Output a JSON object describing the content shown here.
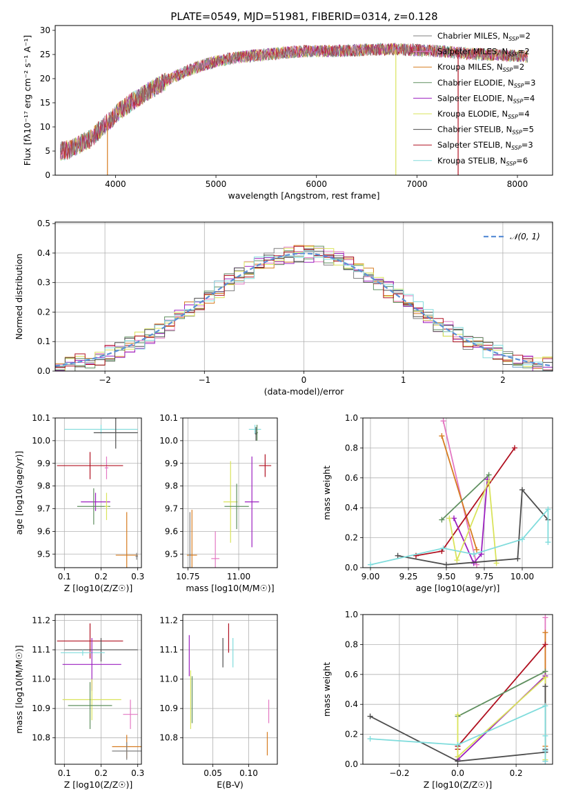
{
  "figure_title": "PLATE=0549, MJD=51981, FIBERID=0314, z=0.128",
  "colors": {
    "CM": "#7f7f7f",
    "SM": "#e377c2",
    "KM": "#d67b1f",
    "CE": "#5f8f5f",
    "SE": "#9b1fbf",
    "KE": "#d9e35a",
    "CS": "#4d4d4d",
    "SS": "#b01020",
    "KS": "#80dcdc",
    "gauss": "#5b8fd6"
  },
  "chart_data": [
    {
      "id": "spectrum",
      "type": "line",
      "xlabel": "wavelength [Angstrom, rest frame]",
      "ylabel": "Flux [fλ10⁻¹⁷ erg cm⁻² s⁻¹ A⁻¹]",
      "xlim": [
        3400,
        8350
      ],
      "ylim": [
        0,
        31
      ],
      "xticks": [
        4000,
        5000,
        6000,
        7000,
        8000
      ],
      "yticks": [
        0,
        5,
        10,
        15,
        20,
        25,
        30
      ],
      "continuum": {
        "x": [
          3450,
          3550,
          3650,
          3750,
          3850,
          3950,
          4050,
          4150,
          4300,
          4500,
          4700,
          4900,
          5100,
          5300,
          5500,
          5700,
          5900,
          6100,
          6300,
          6500,
          6700,
          6900,
          7100,
          7300,
          7500,
          7700,
          7900,
          8100
        ],
        "y": [
          5.0,
          5.3,
          6.5,
          7.5,
          9.5,
          11.5,
          13.5,
          15.0,
          17.0,
          19.5,
          21.5,
          23.0,
          24.0,
          24.6,
          25.0,
          25.4,
          25.7,
          25.7,
          25.8,
          26.0,
          26.1,
          26.0,
          25.8,
          25.6,
          25.2,
          25.0,
          24.8,
          24.6
        ]
      },
      "dropouts": [
        {
          "x": 3920,
          "color": "KM"
        },
        {
          "x": 6790,
          "color": "KE"
        },
        {
          "x": 7410,
          "color": "SS"
        }
      ],
      "legend": [
        {
          "key": "CM",
          "label": "Chabrier MILES, N_SSP=2"
        },
        {
          "key": "SM",
          "label": "Salpeter MILES, N_SSP=2"
        },
        {
          "key": "KM",
          "label": "Kroupa MILES, N_SSP=2"
        },
        {
          "key": "CE",
          "label": "Chabrier ELODIE, N_SSP=3"
        },
        {
          "key": "SE",
          "label": "Salpeter ELODIE, N_SSP=4"
        },
        {
          "key": "KE",
          "label": "Kroupa ELODIE, N_SSP=4"
        },
        {
          "key": "CS",
          "label": "Chabrier STELIB, N_SSP=5"
        },
        {
          "key": "SS",
          "label": "Salpeter STELIB, N_SSP=3"
        },
        {
          "key": "KS",
          "label": "Kroupa STELIB, N_SSP=6"
        }
      ]
    },
    {
      "id": "residuals",
      "type": "line",
      "xlabel": "(data-model)/error",
      "ylabel": "Normed distribution",
      "xlim": [
        -2.5,
        2.5
      ],
      "ylim": [
        0,
        0.505
      ],
      "xticks": [
        -2,
        -1,
        0,
        1,
        2
      ],
      "yticks": [
        0.0,
        0.1,
        0.2,
        0.3,
        0.4,
        0.5
      ],
      "legend": "N(0,1)",
      "bin_width": 0.1
    },
    {
      "id": "z_age",
      "type": "scatter",
      "xlabel": "Z [log10(Z/Z☉)]",
      "ylabel": "age [log10(age/yr)]",
      "xlim": [
        0.075,
        0.31
      ],
      "ylim": [
        9.44,
        10.1
      ],
      "xticks": [
        0.1,
        0.2,
        0.3
      ],
      "yticks": [
        9.5,
        9.6,
        9.7,
        9.8,
        9.9,
        10.0,
        10.1
      ],
      "points": [
        {
          "key": "KS",
          "x": 0.2,
          "y": 10.05,
          "xerr": 0.1,
          "yerr": 0.02
        },
        {
          "key": "CS",
          "x": 0.24,
          "y": 10.035,
          "xerr": 0.06,
          "yerr": 0.07
        },
        {
          "key": "SM",
          "x": 0.215,
          "y": 9.88,
          "xerr": 0.005,
          "yerr": 0.05
        },
        {
          "key": "SS",
          "x": 0.17,
          "y": 9.89,
          "xerr": 0.09,
          "yerr": 0.06
        },
        {
          "key": "SE",
          "x": 0.185,
          "y": 9.73,
          "xerr": 0.04,
          "yerr": 0.04
        },
        {
          "key": "CE",
          "x": 0.18,
          "y": 9.71,
          "xerr": 0.045,
          "yerr": 0.08
        },
        {
          "key": "KE",
          "x": 0.215,
          "y": 9.71,
          "xerr": 0.005,
          "yerr": 0.06
        },
        {
          "key": "KM",
          "x": 0.27,
          "y": 9.495,
          "xerr": 0.03,
          "yerr": 0.19
        },
        {
          "key": "CM",
          "x": 0.297,
          "y": 9.49,
          "xerr": 0.003,
          "yerr": 0.015
        }
      ]
    },
    {
      "id": "mass_age",
      "type": "scatter",
      "xlabel": "mass [log10(M/M☉)]",
      "ylabel": "",
      "xlim": [
        10.725,
        11.19
      ],
      "ylim": [
        9.44,
        10.1
      ],
      "xticks": [
        10.75,
        11.0
      ],
      "yticks": [
        9.5,
        9.6,
        9.7,
        9.8,
        9.9,
        10.0,
        10.1
      ],
      "points": [
        {
          "key": "KS",
          "x": 11.08,
          "y": 10.05,
          "xerr": 0.03,
          "yerr": 0.02
        },
        {
          "key": "CE",
          "x": 11.09,
          "y": 10.035,
          "xerr": 0.005,
          "yerr": 0.035
        },
        {
          "key": "CS",
          "x": 11.085,
          "y": 10.03,
          "xerr": 0.005,
          "yerr": 0.03
        },
        {
          "key": "SS",
          "x": 11.13,
          "y": 9.89,
          "xerr": 0.03,
          "yerr": 0.05
        },
        {
          "key": "SE",
          "x": 11.065,
          "y": 9.73,
          "xerr": 0.035,
          "yerr": 0.2
        },
        {
          "key": "KE",
          "x": 10.96,
          "y": 9.73,
          "xerr": 0.035,
          "yerr": 0.18
        },
        {
          "key": "CE",
          "x": 10.99,
          "y": 9.71,
          "xerr": 0.06,
          "yerr": 0.1
        },
        {
          "key": "KM",
          "x": 10.77,
          "y": 9.495,
          "xerr": 0.025,
          "yerr": 0.2
        },
        {
          "key": "CM",
          "x": 10.76,
          "y": 9.495,
          "xerr": 0.005,
          "yerr": 0.19
        },
        {
          "key": "SM",
          "x": 10.885,
          "y": 9.48,
          "xerr": 0.02,
          "yerr": 0.12
        }
      ]
    },
    {
      "id": "age_weight",
      "type": "line",
      "xlabel": "age  [log10(age/yr)]",
      "ylabel": "mass weight",
      "xlim": [
        8.95,
        10.2
      ],
      "ylim": [
        0,
        1.0
      ],
      "xticks": [
        9.0,
        9.25,
        9.5,
        9.75,
        10.0
      ],
      "yticks": [
        0.0,
        0.2,
        0.4,
        0.6,
        0.8,
        1.0
      ],
      "series": [
        {
          "key": "SM",
          "x": [
            9.48,
            9.7
          ],
          "y": [
            0.98,
            0.02
          ]
        },
        {
          "key": "KM",
          "x": [
            9.47,
            9.7
          ],
          "y": [
            0.88,
            0.12
          ]
        },
        {
          "key": "SS",
          "x": [
            9.3,
            9.47,
            9.95
          ],
          "y": [
            0.08,
            0.11,
            0.8
          ]
        },
        {
          "key": "CE",
          "x": [
            9.47,
            9.78
          ],
          "y": [
            0.32,
            0.62
          ]
        },
        {
          "key": "SE",
          "x": [
            9.55,
            9.68,
            9.73,
            9.77
          ],
          "y": [
            0.33,
            0.03,
            0.09,
            0.59
          ]
        },
        {
          "key": "KE",
          "x": [
            9.52,
            9.57,
            9.78,
            9.83
          ],
          "y": [
            0.33,
            0.05,
            0.58,
            0.03
          ]
        },
        {
          "key": "CS",
          "x": [
            9.18,
            9.5,
            9.97,
            10.0,
            10.17
          ],
          "y": [
            0.08,
            0.02,
            0.06,
            0.52,
            0.32
          ]
        },
        {
          "key": "KS",
          "x": [
            9.0,
            9.48,
            9.68,
            10.0,
            10.17,
            10.17
          ],
          "y": [
            0.02,
            0.13,
            0.09,
            0.19,
            0.39,
            0.17
          ]
        }
      ]
    },
    {
      "id": "z_mass",
      "type": "scatter",
      "xlabel": "Z [log10(Z/Z☉)]",
      "ylabel": "mass [log10(M/M☉)]",
      "xlim": [
        0.075,
        0.31
      ],
      "ylim": [
        10.71,
        11.22
      ],
      "xticks": [
        0.1,
        0.2,
        0.3
      ],
      "yticks": [
        10.8,
        10.9,
        11.0,
        11.1,
        11.2
      ],
      "points": [
        {
          "key": "SS",
          "x": 0.17,
          "y": 11.13,
          "xerr": 0.09,
          "yerr": 0.06
        },
        {
          "key": "CS",
          "x": 0.2,
          "y": 11.1,
          "xerr": 0.1,
          "yerr": 0.04
        },
        {
          "key": "KS",
          "x": 0.15,
          "y": 11.09,
          "xerr": 0.06,
          "yerr": 0.01
        },
        {
          "key": "SE",
          "x": 0.175,
          "y": 11.05,
          "xerr": 0.08,
          "yerr": 0.09
        },
        {
          "key": "KE",
          "x": 0.175,
          "y": 10.93,
          "xerr": 0.08,
          "yerr": 0.07
        },
        {
          "key": "CE",
          "x": 0.17,
          "y": 10.91,
          "xerr": 0.06,
          "yerr": 0.08
        },
        {
          "key": "SM",
          "x": 0.28,
          "y": 10.88,
          "xerr": 0.02,
          "yerr": 0.05
        },
        {
          "key": "KM",
          "x": 0.27,
          "y": 10.77,
          "xerr": 0.04,
          "yerr": 0.04
        },
        {
          "key": "CM",
          "x": 0.27,
          "y": 10.755,
          "xerr": 0.04,
          "yerr": 0.03
        }
      ]
    },
    {
      "id": "ebv_mass",
      "type": "scatter",
      "xlabel": "E(B-V)",
      "ylabel": "",
      "xlim": [
        0.008,
        0.14
      ],
      "ylim": [
        10.71,
        11.22
      ],
      "xticks": [
        0.05,
        0.1
      ],
      "yticks": [
        10.8,
        10.9,
        11.0,
        11.1,
        11.2
      ],
      "points": [
        {
          "key": "SS",
          "x": 0.072,
          "y": 11.14,
          "xerr": 0,
          "yerr": 0.05
        },
        {
          "key": "CS",
          "x": 0.064,
          "y": 11.09,
          "xerr": 0,
          "yerr": 0.05
        },
        {
          "key": "KS",
          "x": 0.078,
          "y": 11.09,
          "xerr": 0,
          "yerr": 0.05
        },
        {
          "key": "SE",
          "x": 0.017,
          "y": 11.08,
          "xerr": 0,
          "yerr": 0.07
        },
        {
          "key": "KE",
          "x": 0.019,
          "y": 10.93,
          "xerr": 0,
          "yerr": 0.1
        },
        {
          "key": "CE",
          "x": 0.021,
          "y": 10.93,
          "xerr": 0,
          "yerr": 0.08
        },
        {
          "key": "SM",
          "x": 0.128,
          "y": 10.89,
          "xerr": 0,
          "yerr": 0.04
        },
        {
          "key": "KM",
          "x": 0.126,
          "y": 10.78,
          "xerr": 0,
          "yerr": 0.04
        }
      ]
    },
    {
      "id": "z_weight",
      "type": "line",
      "xlabel": "Z [log10(Z/Z☉)]",
      "ylabel": "mass weight",
      "xlim": [
        -0.325,
        0.325
      ],
      "ylim": [
        0,
        1.0
      ],
      "xticks": [
        -0.2,
        0.0,
        0.2
      ],
      "yticks": [
        0.0,
        0.2,
        0.4,
        0.6,
        0.8,
        1.0
      ],
      "series": [
        {
          "key": "SM",
          "x": [
            0.3,
            0.3
          ],
          "y": [
            0.98,
            0.02
          ]
        },
        {
          "key": "KM",
          "x": [
            0.3,
            0.3
          ],
          "y": [
            0.88,
            0.12
          ]
        },
        {
          "key": "SS",
          "x": [
            0.0,
            0.0,
            0.3
          ],
          "y": [
            0.1,
            0.12,
            0.8
          ]
        },
        {
          "key": "CE",
          "x": [
            0.0,
            0.3
          ],
          "y": [
            0.32,
            0.62
          ]
        },
        {
          "key": "SE",
          "x": [
            0.0,
            0.0,
            0.3,
            0.3
          ],
          "y": [
            0.05,
            0.03,
            0.59,
            0.09
          ]
        },
        {
          "key": "KE",
          "x": [
            0.0,
            0.0,
            0.3,
            0.3
          ],
          "y": [
            0.33,
            0.05,
            0.58,
            0.03
          ]
        },
        {
          "key": "CS",
          "x": [
            -0.3,
            0.0,
            0.3,
            0.3,
            0.3
          ],
          "y": [
            0.32,
            0.02,
            0.08,
            0.52,
            0.1
          ]
        },
        {
          "key": "KS",
          "x": [
            -0.3,
            0.0,
            0.3,
            0.3,
            0.3,
            0.3
          ],
          "y": [
            0.17,
            0.13,
            0.39,
            0.19,
            0.09,
            0.02
          ]
        }
      ]
    }
  ]
}
